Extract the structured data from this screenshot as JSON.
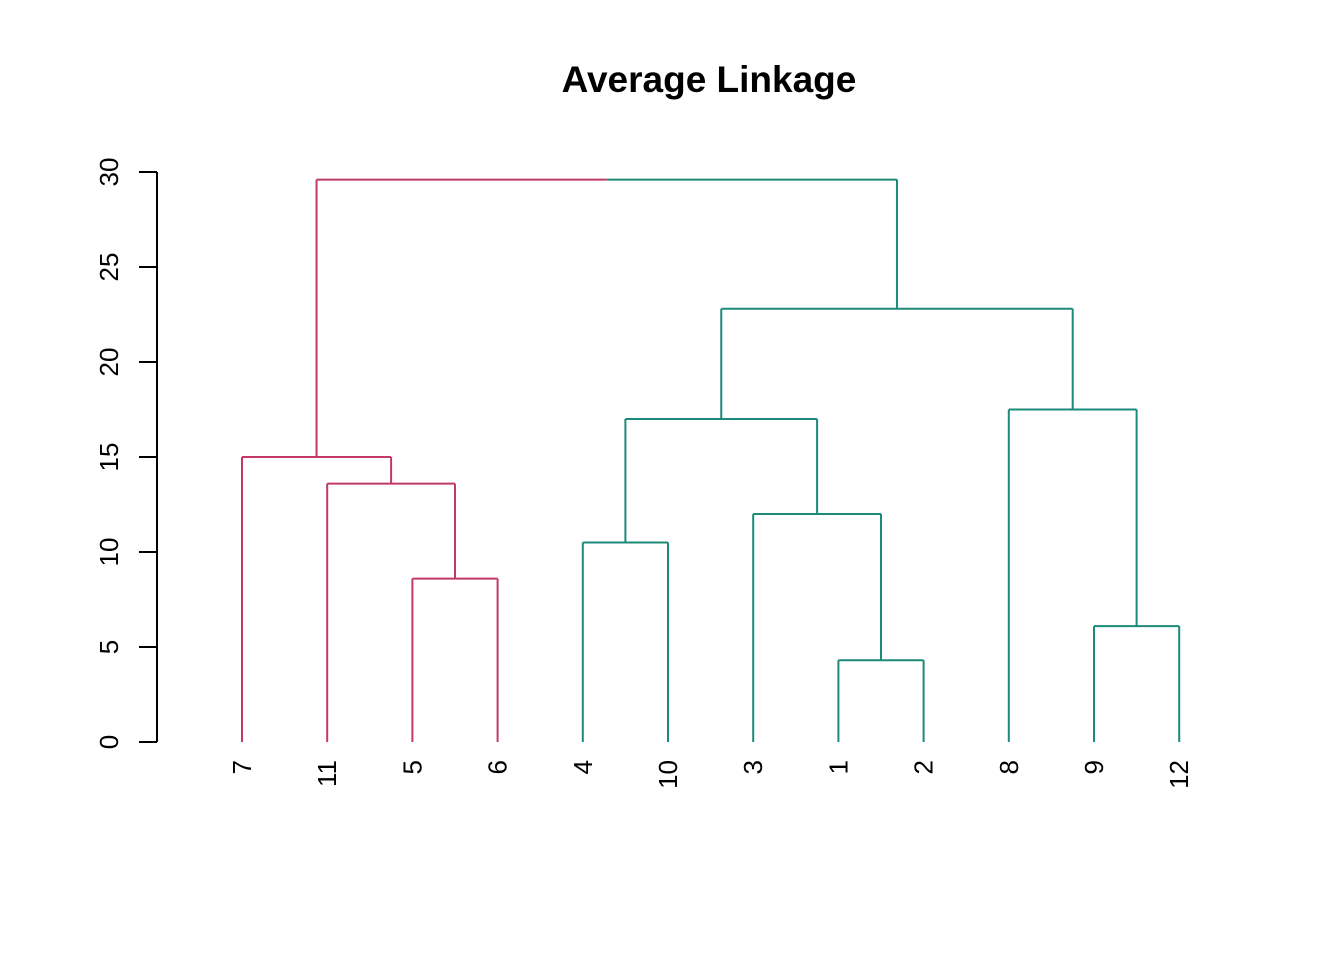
{
  "chart_data": {
    "type": "dendrogram",
    "title": "Average Linkage",
    "xlabel": "",
    "ylabel": "",
    "ylim": [
      0,
      30
    ],
    "yticks": [
      0,
      5,
      10,
      15,
      20,
      25,
      30
    ],
    "grid": false,
    "colors": {
      "cluster_1": "#c2386a",
      "cluster_2": "#1b8a78",
      "axis": "#000000"
    },
    "leaf_order": [
      "7",
      "11",
      "5",
      "6",
      "4",
      "10",
      "3",
      "1",
      "2",
      "8",
      "9",
      "12"
    ],
    "leaf_clusters": [
      1,
      1,
      1,
      1,
      2,
      2,
      2,
      2,
      2,
      2,
      2,
      2
    ],
    "merges": [
      {
        "id": "m1",
        "left": "1",
        "right": "2",
        "height": 4.3
      },
      {
        "id": "m2",
        "left": "9",
        "right": "12",
        "height": 6.1
      },
      {
        "id": "m3",
        "left": "5",
        "right": "6",
        "height": 8.6
      },
      {
        "id": "m4",
        "left": "4",
        "right": "10",
        "height": 10.5
      },
      {
        "id": "m5",
        "left": "3",
        "right": "m1",
        "height": 12.0
      },
      {
        "id": "m6",
        "left": "11",
        "right": "m3",
        "height": 13.6
      },
      {
        "id": "m7",
        "left": "7",
        "right": "m6",
        "height": 15.0
      },
      {
        "id": "m8",
        "left": "m4",
        "right": "m5",
        "height": 17.0
      },
      {
        "id": "m9",
        "left": "8",
        "right": "m2",
        "height": 17.5
      },
      {
        "id": "m10",
        "left": "m8",
        "right": "m9",
        "height": 22.8
      },
      {
        "id": "m11",
        "left": "m7",
        "right": "m10",
        "height": 29.6
      }
    ]
  }
}
